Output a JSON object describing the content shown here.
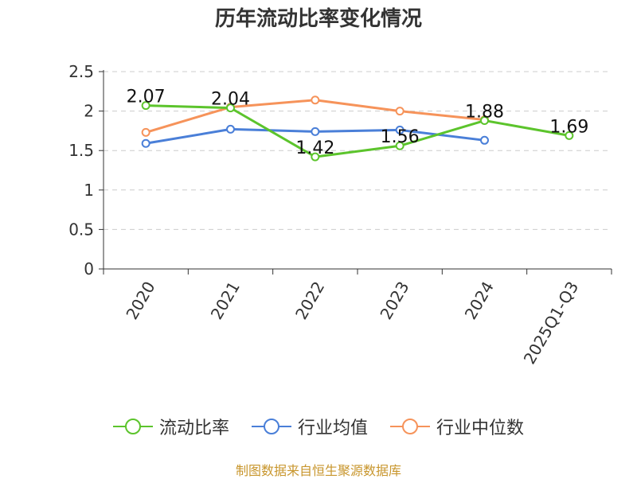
{
  "footer": "制图数据来自恒生聚源数据库",
  "chart_data": {
    "type": "line",
    "title": "历年流动比率变化情况",
    "categories": [
      "2020",
      "2021",
      "2022",
      "2023",
      "2024",
      "2025Q1-Q3"
    ],
    "ylim": [
      0,
      2.5
    ],
    "yticks": [
      0,
      0.5,
      1,
      1.5,
      2,
      2.5
    ],
    "ytick_labels": [
      "0",
      "0.5",
      "1",
      "1.5",
      "2",
      "2.5"
    ],
    "grid": true,
    "legend_position": "bottom",
    "series": [
      {
        "name": "流动比率",
        "color": "#5cc42c",
        "values": [
          2.07,
          2.04,
          1.42,
          1.56,
          1.88,
          1.69
        ],
        "labels": [
          "2.07",
          "2.04",
          "1.42",
          "1.56",
          "1.88",
          "1.69"
        ]
      },
      {
        "name": "行业均值",
        "color": "#4a7fd8",
        "values": [
          1.59,
          1.77,
          1.74,
          1.76,
          1.63,
          null
        ]
      },
      {
        "name": "行业中位数",
        "color": "#f6935a",
        "values": [
          1.73,
          2.05,
          2.14,
          2.0,
          1.89,
          null
        ]
      }
    ]
  }
}
